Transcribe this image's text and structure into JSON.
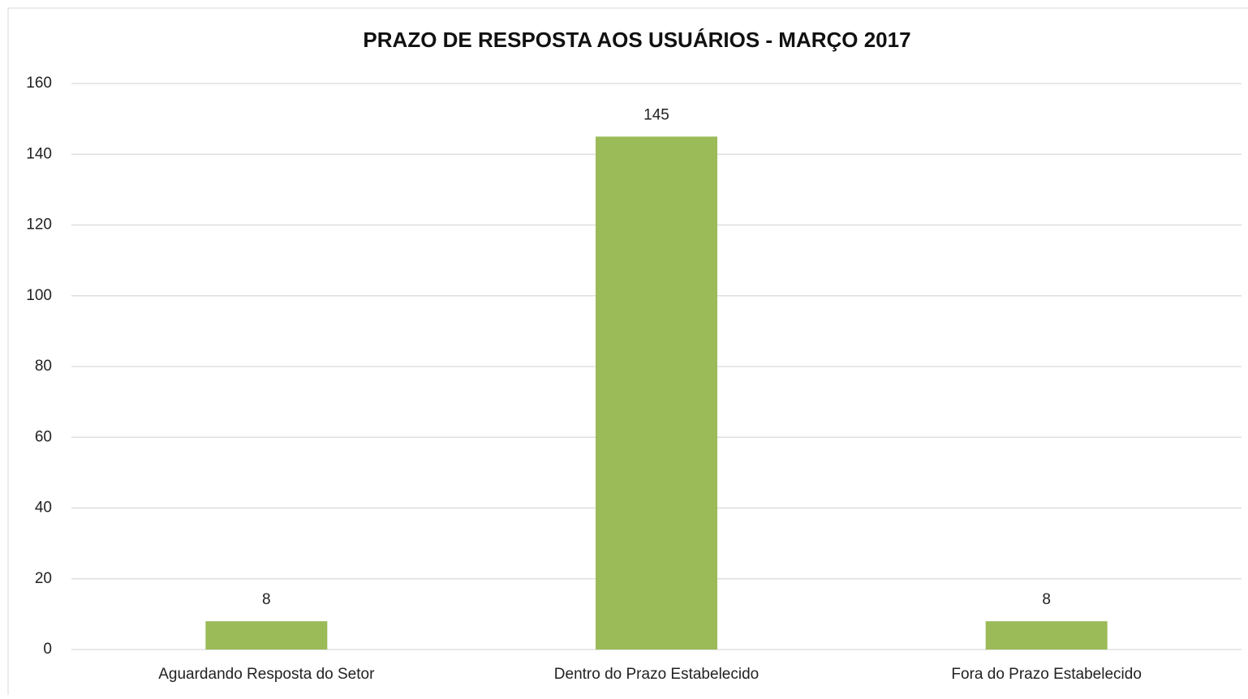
{
  "chart_data": {
    "type": "bar",
    "title": "PRAZO DE RESPOSTA AOS USUÁRIOS - MARÇO 2017",
    "categories": [
      "Aguardando Resposta do Setor",
      "Dentro do Prazo Estabelecido",
      "Fora do Prazo Estabelecido"
    ],
    "values": [
      8,
      145,
      8
    ],
    "color": "#9bbb59",
    "ylim": [
      0,
      160
    ],
    "yticks": [
      0,
      20,
      40,
      60,
      80,
      100,
      120,
      140,
      160
    ],
    "grid": true,
    "data_labels": true
  }
}
